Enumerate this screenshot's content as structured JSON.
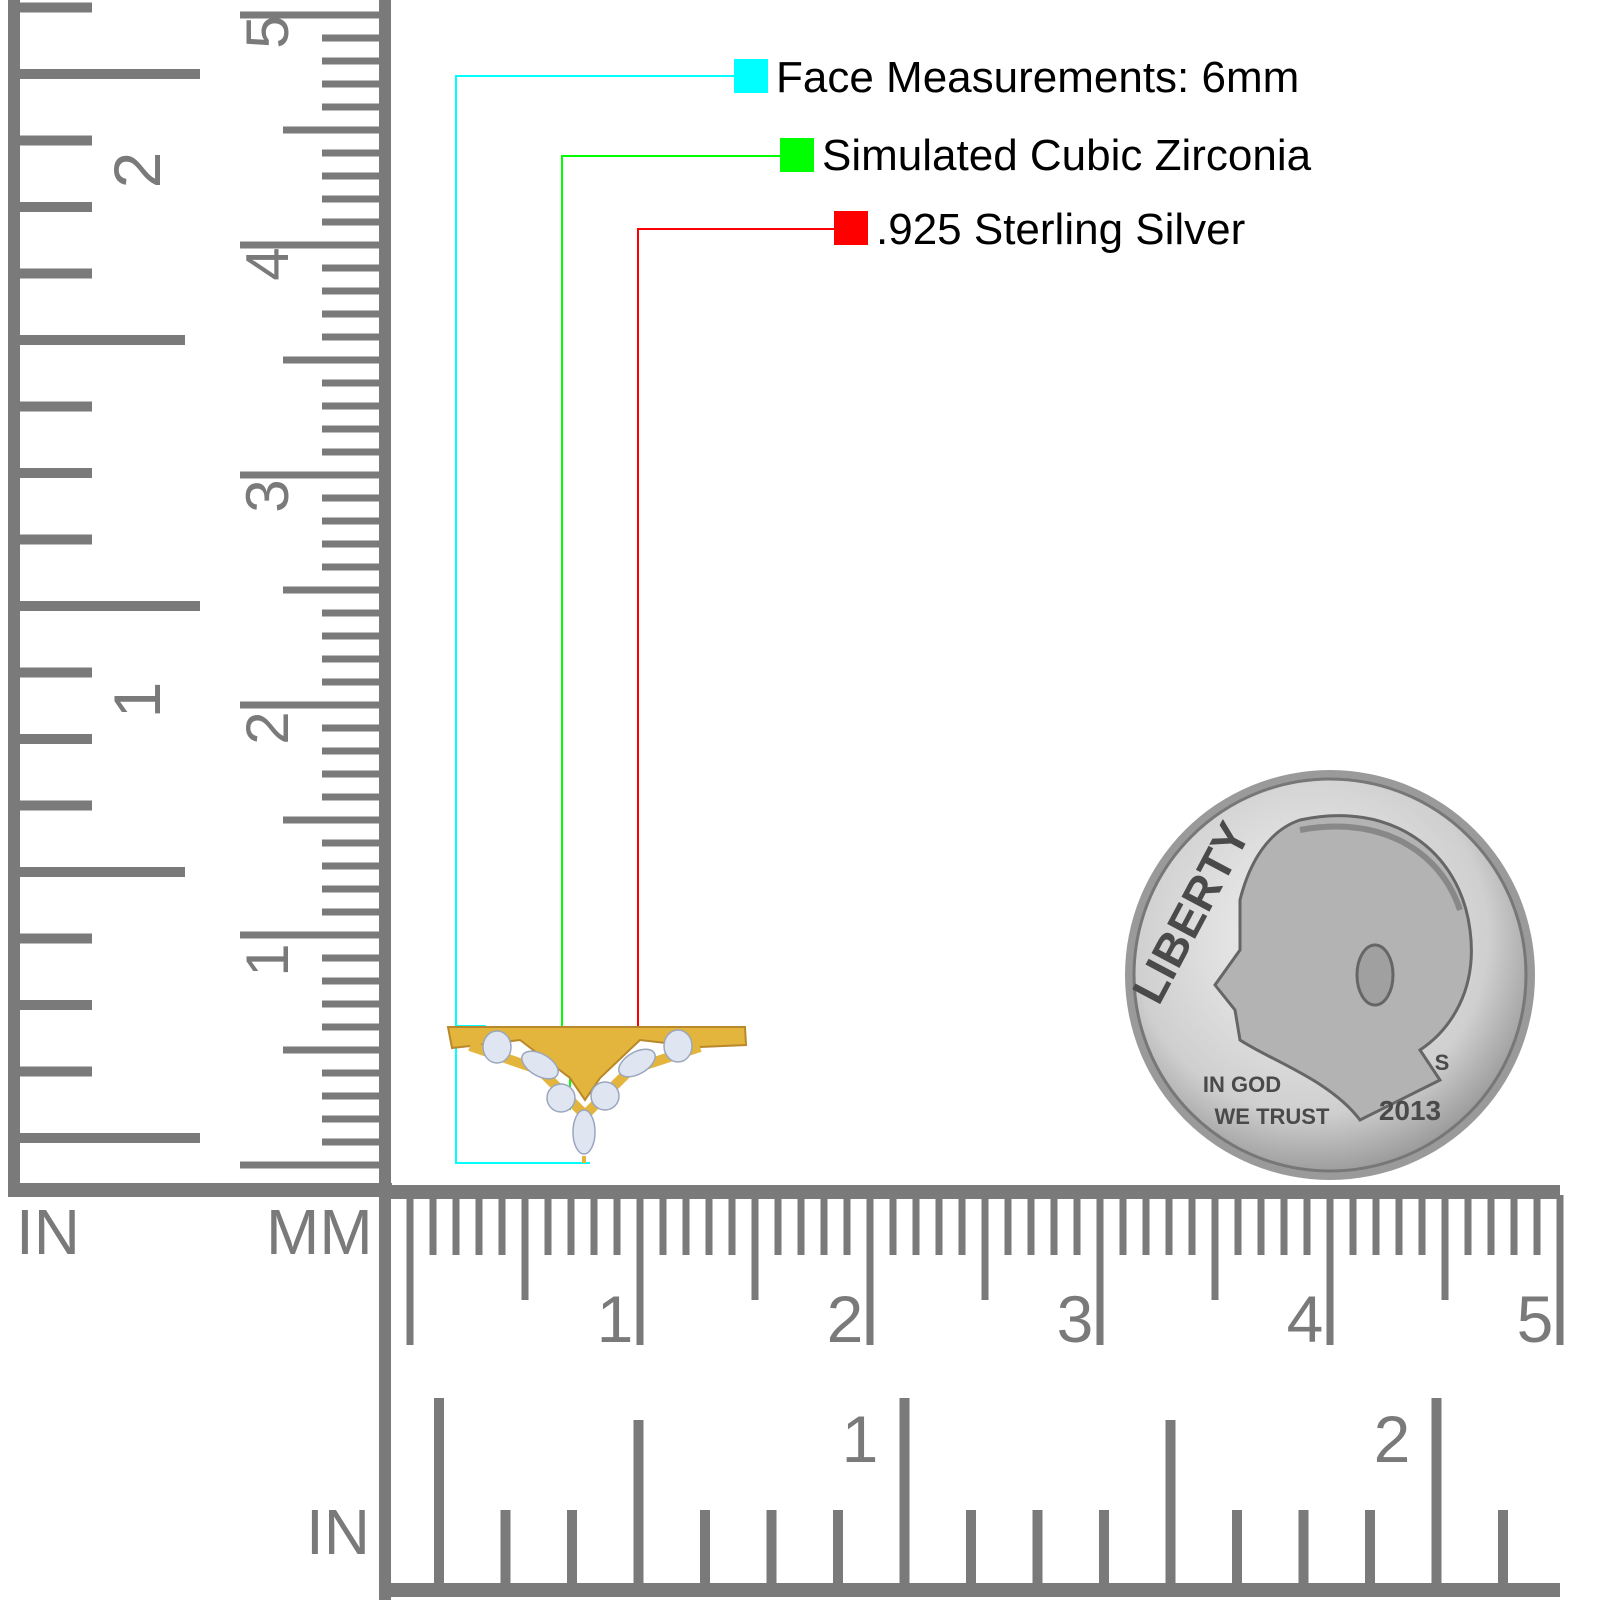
{
  "callouts": [
    {
      "text": "Face Measurements: 6mm",
      "color": "#00ffff"
    },
    {
      "text": "Simulated Cubic Zirconia",
      "color": "#00ff00"
    },
    {
      "text": ".925 Sterling Silver",
      "color": "#ff0000"
    }
  ],
  "rulers": {
    "color": "#7a7a7a",
    "left_inch_label": "IN",
    "left_mm_label": "MM",
    "bottom_inch_label": "IN",
    "left_inch_numbers": [
      "1",
      "2"
    ],
    "left_cm_numbers": [
      "1",
      "2",
      "3",
      "4",
      "5"
    ],
    "bottom_cm_numbers": [
      "1",
      "2",
      "3",
      "4",
      "5"
    ],
    "bottom_inch_numbers": [
      "1",
      "2"
    ]
  },
  "coin": {
    "top": "LIBERTY",
    "motto_1": "IN GOD",
    "motto_2": "WE TRUST",
    "year": "2013",
    "mint": "S"
  },
  "ring": {
    "metal_color": "#e3b53c",
    "stone_color": "#dfe6f2"
  }
}
